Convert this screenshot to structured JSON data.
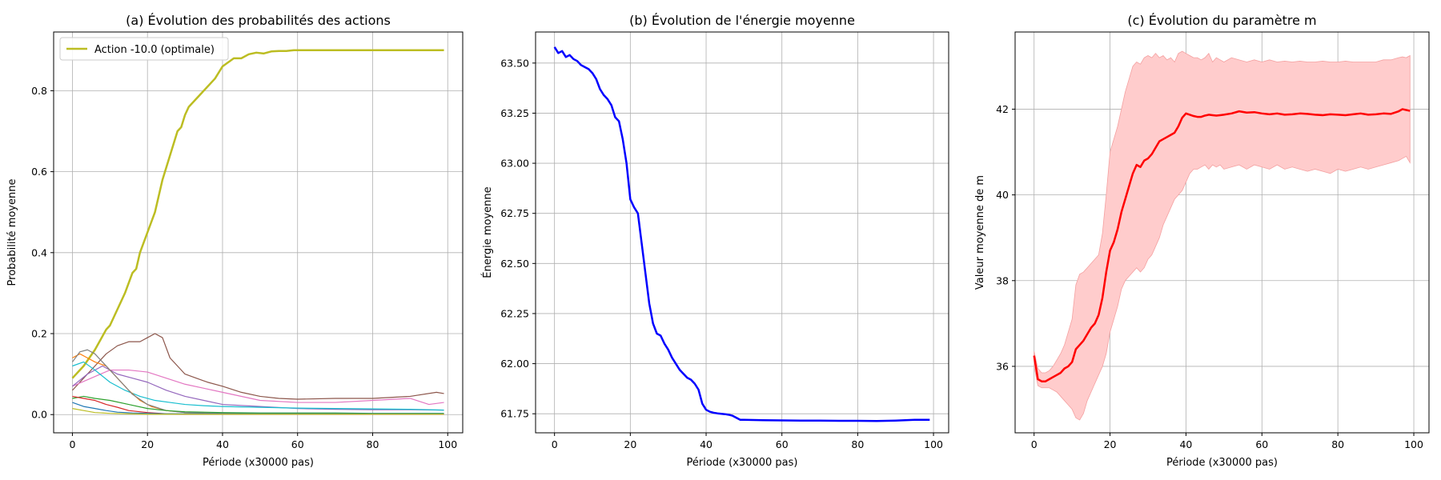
{
  "chart_data": [
    {
      "type": "line",
      "title": "(a) Évolution des probabilités des actions",
      "xlabel": "Période (x30000 pas)",
      "ylabel": "Probabilité moyenne",
      "xlim": [
        -5,
        104
      ],
      "ylim": [
        -0.045,
        0.945
      ],
      "xticks": [
        0,
        20,
        40,
        60,
        80,
        100
      ],
      "yticks": [
        0.0,
        0.2,
        0.4,
        0.6,
        0.8
      ],
      "ytick_labels": [
        "0.0",
        "0.2",
        "0.4",
        "0.6",
        "0.8"
      ],
      "grid": true,
      "legend": "top-left",
      "series": [
        {
          "name": "Action -10.0 (optimale)",
          "color": "#bcbd22",
          "highlight": true,
          "x": [
            0,
            3,
            6,
            9,
            10,
            12,
            14,
            16,
            17,
            18,
            20,
            22,
            24,
            26,
            28,
            29,
            30,
            31,
            33,
            35,
            38,
            40,
            43,
            45,
            47,
            49,
            51,
            53,
            55,
            57,
            59,
            60,
            70,
            80,
            90,
            99
          ],
          "y": [
            0.09,
            0.12,
            0.16,
            0.21,
            0.22,
            0.26,
            0.3,
            0.35,
            0.36,
            0.4,
            0.45,
            0.5,
            0.58,
            0.64,
            0.7,
            0.71,
            0.74,
            0.76,
            0.78,
            0.8,
            0.83,
            0.86,
            0.88,
            0.88,
            0.89,
            0.894,
            0.892,
            0.897,
            0.898,
            0.898,
            0.9,
            0.9,
            0.9,
            0.9,
            0.9,
            0.9
          ]
        },
        {
          "color": "#8c564b",
          "x": [
            0,
            3,
            6,
            9,
            12,
            15,
            18,
            20,
            22,
            24,
            26,
            28,
            30,
            33,
            36,
            40,
            45,
            50,
            55,
            60,
            70,
            80,
            90,
            97,
            99
          ],
          "y": [
            0.06,
            0.09,
            0.12,
            0.15,
            0.17,
            0.18,
            0.18,
            0.19,
            0.2,
            0.19,
            0.14,
            0.12,
            0.1,
            0.09,
            0.08,
            0.07,
            0.055,
            0.045,
            0.04,
            0.038,
            0.04,
            0.04,
            0.045,
            0.055,
            0.052
          ]
        },
        {
          "color": "#e377c2",
          "x": [
            0,
            5,
            10,
            15,
            20,
            25,
            30,
            35,
            40,
            50,
            60,
            70,
            80,
            90,
            95,
            99
          ],
          "y": [
            0.07,
            0.09,
            0.11,
            0.11,
            0.105,
            0.09,
            0.075,
            0.065,
            0.055,
            0.035,
            0.03,
            0.03,
            0.035,
            0.04,
            0.025,
            0.03
          ]
        },
        {
          "color": "#9467bd",
          "x": [
            0,
            4,
            8,
            12,
            16,
            20,
            25,
            30,
            35,
            40,
            50,
            60,
            70,
            80,
            90,
            99
          ],
          "y": [
            0.07,
            0.1,
            0.12,
            0.1,
            0.09,
            0.08,
            0.06,
            0.045,
            0.035,
            0.025,
            0.02,
            0.015,
            0.013,
            0.012,
            0.012,
            0.011
          ]
        },
        {
          "color": "#17becf",
          "x": [
            0,
            3,
            6,
            10,
            14,
            18,
            22,
            26,
            30,
            35,
            40,
            50,
            60,
            70,
            80,
            90,
            99
          ],
          "y": [
            0.12,
            0.13,
            0.11,
            0.08,
            0.06,
            0.045,
            0.035,
            0.03,
            0.025,
            0.022,
            0.02,
            0.018,
            0.016,
            0.015,
            0.014,
            0.013,
            0.011
          ]
        },
        {
          "color": "#ff7f0e",
          "x": [
            0,
            2,
            4,
            6,
            9,
            12,
            15,
            18,
            21,
            25,
            30,
            40,
            50,
            60,
            80,
            99
          ],
          "y": [
            0.14,
            0.15,
            0.14,
            0.13,
            0.12,
            0.09,
            0.06,
            0.035,
            0.02,
            0.01,
            0.005,
            0.003,
            0.002,
            0.002,
            0.001,
            0.001
          ]
        },
        {
          "color": "#7f7f7f",
          "x": [
            0,
            2,
            4,
            6,
            8,
            10,
            13,
            16,
            20,
            25,
            30,
            40,
            60,
            80,
            99
          ],
          "y": [
            0.13,
            0.155,
            0.16,
            0.15,
            0.13,
            0.11,
            0.08,
            0.05,
            0.025,
            0.01,
            0.005,
            0.003,
            0.002,
            0.001,
            0.001
          ]
        },
        {
          "color": "#2ca02c",
          "x": [
            0,
            3,
            6,
            10,
            15,
            20,
            25,
            30,
            40,
            50,
            60,
            70,
            80,
            90,
            99
          ],
          "y": [
            0.04,
            0.045,
            0.04,
            0.035,
            0.025,
            0.015,
            0.01,
            0.007,
            0.005,
            0.004,
            0.004,
            0.004,
            0.003,
            0.003,
            0.003
          ]
        },
        {
          "color": "#d62728",
          "x": [
            0,
            3,
            6,
            9,
            12,
            15,
            20,
            25,
            30,
            40,
            60,
            80,
            99
          ],
          "y": [
            0.045,
            0.04,
            0.035,
            0.025,
            0.018,
            0.01,
            0.005,
            0.002,
            0.001,
            0.001,
            0.001,
            0.001,
            0.001
          ]
        },
        {
          "color": "#1f77b4",
          "x": [
            0,
            3,
            6,
            9,
            12,
            16,
            20,
            25,
            30,
            40,
            60,
            80,
            99
          ],
          "y": [
            0.03,
            0.02,
            0.015,
            0.01,
            0.006,
            0.004,
            0.003,
            0.002,
            0.002,
            0.002,
            0.002,
            0.002,
            0.002
          ]
        },
        {
          "color": "#bcbd22",
          "x": [
            0,
            3,
            6,
            10,
            15,
            20,
            30,
            40,
            60,
            80,
            99
          ],
          "y": [
            0.015,
            0.01,
            0.005,
            0.003,
            0.002,
            0.001,
            0.001,
            0.001,
            0.001,
            0.001,
            0.001
          ]
        }
      ]
    },
    {
      "type": "line",
      "title": "(b) Évolution de l'énergie moyenne",
      "xlabel": "Période (x30000 pas)",
      "ylabel": "Énergie moyenne",
      "xlim": [
        -5,
        104
      ],
      "ylim": [
        61.655,
        63.655
      ],
      "xticks": [
        0,
        20,
        40,
        60,
        80,
        100
      ],
      "yticks": [
        61.75,
        62.0,
        62.25,
        62.5,
        62.75,
        63.0,
        63.25,
        63.5
      ],
      "ytick_labels": [
        "61.75",
        "62.00",
        "62.25",
        "62.50",
        "62.75",
        "63.00",
        "63.25",
        "63.50"
      ],
      "grid": true,
      "series": [
        {
          "color": "#0000ff",
          "x": [
            0,
            1,
            2,
            3,
            4,
            5,
            6,
            7,
            8,
            9,
            10,
            11,
            12,
            13,
            14,
            15,
            16,
            17,
            18,
            19,
            20,
            21,
            22,
            23,
            24,
            25,
            26,
            27,
            28,
            29,
            30,
            31,
            32,
            33,
            34,
            35,
            36,
            37,
            38,
            39,
            40,
            41,
            42,
            43,
            44,
            45,
            46,
            47,
            48,
            49,
            50,
            55,
            60,
            65,
            70,
            75,
            80,
            85,
            90,
            95,
            99
          ],
          "y": [
            63.58,
            63.55,
            63.56,
            63.53,
            63.54,
            63.52,
            63.51,
            63.49,
            63.48,
            63.47,
            63.45,
            63.42,
            63.37,
            63.34,
            63.32,
            63.29,
            63.23,
            63.21,
            63.12,
            63.0,
            62.82,
            62.78,
            62.75,
            62.6,
            62.45,
            62.3,
            62.2,
            62.15,
            62.14,
            62.1,
            62.07,
            62.03,
            62.0,
            61.97,
            61.95,
            61.93,
            61.92,
            61.9,
            61.87,
            61.8,
            61.77,
            61.76,
            61.755,
            61.752,
            61.75,
            61.748,
            61.745,
            61.74,
            61.73,
            61.72,
            61.72,
            61.718,
            61.717,
            61.716,
            61.716,
            61.715,
            61.715,
            61.714,
            61.716,
            61.72,
            61.72
          ]
        }
      ]
    },
    {
      "type": "area",
      "title": "(c) Évolution du paramètre m",
      "xlabel": "Période (x30000 pas)",
      "ylabel": "Valeur moyenne de m",
      "xlim": [
        -5,
        104
      ],
      "ylim": [
        34.45,
        43.8
      ],
      "xticks": [
        0,
        20,
        40,
        60,
        80,
        100
      ],
      "yticks": [
        36,
        38,
        40,
        42
      ],
      "ytick_labels": [
        "36",
        "38",
        "40",
        "42"
      ],
      "grid": true,
      "series": [
        {
          "color": "#ff0000",
          "band_color": "#ffcccc",
          "x": [
            0,
            1,
            2,
            3,
            4,
            5,
            6,
            7,
            8,
            9,
            10,
            11,
            12,
            13,
            14,
            15,
            16,
            17,
            18,
            19,
            20,
            21,
            22,
            23,
            24,
            25,
            26,
            27,
            28,
            29,
            30,
            31,
            32,
            33,
            34,
            35,
            36,
            37,
            38,
            39,
            40,
            41,
            42,
            43,
            44,
            45,
            46,
            47,
            48,
            49,
            50,
            52,
            54,
            56,
            58,
            60,
            62,
            64,
            66,
            68,
            70,
            72,
            74,
            76,
            78,
            80,
            82,
            84,
            86,
            88,
            90,
            92,
            94,
            96,
            97,
            98,
            99
          ],
          "y": [
            36.25,
            35.7,
            35.65,
            35.65,
            35.7,
            35.75,
            35.8,
            35.85,
            35.95,
            36.0,
            36.1,
            36.4,
            36.5,
            36.6,
            36.75,
            36.9,
            37.0,
            37.2,
            37.6,
            38.2,
            38.7,
            38.9,
            39.2,
            39.6,
            39.9,
            40.2,
            40.5,
            40.7,
            40.65,
            40.8,
            40.85,
            40.95,
            41.1,
            41.25,
            41.3,
            41.35,
            41.4,
            41.45,
            41.6,
            41.8,
            41.9,
            41.87,
            41.84,
            41.82,
            41.82,
            41.85,
            41.87,
            41.86,
            41.85,
            41.86,
            41.87,
            41.9,
            41.95,
            41.92,
            41.93,
            41.9,
            41.88,
            41.9,
            41.87,
            41.88,
            41.9,
            41.89,
            41.87,
            41.86,
            41.88,
            41.87,
            41.86,
            41.88,
            41.9,
            41.87,
            41.88,
            41.9,
            41.89,
            41.95,
            42.0,
            41.98,
            41.96
          ],
          "lower": [
            36.0,
            35.55,
            35.5,
            35.5,
            35.5,
            35.45,
            35.4,
            35.3,
            35.2,
            35.1,
            35.0,
            34.8,
            34.75,
            34.9,
            35.2,
            35.4,
            35.6,
            35.8,
            36.0,
            36.3,
            36.8,
            37.1,
            37.4,
            37.8,
            38.0,
            38.1,
            38.2,
            38.3,
            38.2,
            38.3,
            38.5,
            38.6,
            38.8,
            39.0,
            39.3,
            39.5,
            39.7,
            39.9,
            40.0,
            40.1,
            40.3,
            40.5,
            40.6,
            40.6,
            40.65,
            40.7,
            40.6,
            40.7,
            40.65,
            40.7,
            40.6,
            40.65,
            40.7,
            40.6,
            40.7,
            40.65,
            40.6,
            40.7,
            40.6,
            40.65,
            40.6,
            40.55,
            40.6,
            40.55,
            40.5,
            40.6,
            40.55,
            40.6,
            40.65,
            40.6,
            40.65,
            40.7,
            40.75,
            40.8,
            40.85,
            40.9,
            40.75
          ],
          "upper": [
            36.35,
            35.95,
            35.85,
            35.85,
            35.9,
            36.0,
            36.15,
            36.3,
            36.5,
            36.8,
            37.1,
            37.9,
            38.15,
            38.2,
            38.3,
            38.4,
            38.5,
            38.6,
            39.1,
            40.0,
            41.0,
            41.3,
            41.6,
            42.0,
            42.4,
            42.7,
            43.0,
            43.1,
            43.05,
            43.2,
            43.25,
            43.2,
            43.3,
            43.2,
            43.25,
            43.15,
            43.2,
            43.1,
            43.3,
            43.35,
            43.3,
            43.25,
            43.2,
            43.2,
            43.15,
            43.2,
            43.3,
            43.1,
            43.2,
            43.15,
            43.1,
            43.2,
            43.15,
            43.1,
            43.15,
            43.1,
            43.15,
            43.1,
            43.12,
            43.1,
            43.12,
            43.1,
            43.1,
            43.12,
            43.1,
            43.1,
            43.12,
            43.1,
            43.1,
            43.1,
            43.1,
            43.15,
            43.15,
            43.2,
            43.22,
            43.2,
            43.25
          ]
        }
      ]
    }
  ]
}
